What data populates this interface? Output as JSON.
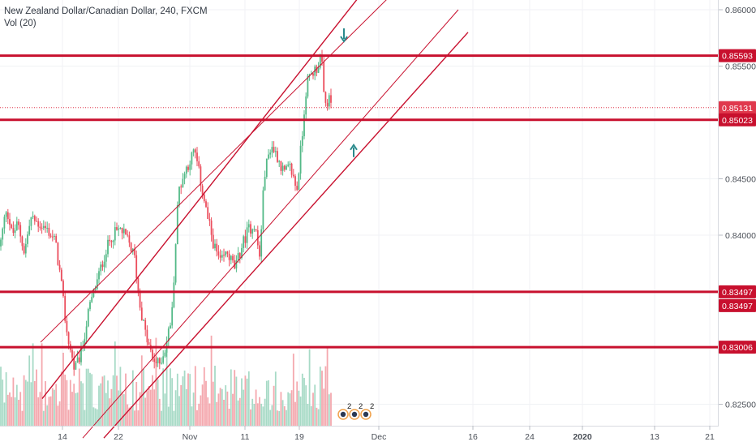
{
  "header": {
    "title": "New Zealand Dollar/Canadian Dollar, 240, FXCM",
    "volume_label": "Vol (20)"
  },
  "colors": {
    "up": "#53b987",
    "down": "#eb4d5c",
    "vol_up": "#a7dac6",
    "vol_down": "#f4a8ae",
    "level_line": "#c8102e",
    "channel_line": "#c8102e",
    "price_dotted": "#e0394d",
    "arrow": "#2a8a8c",
    "axis_bg": "#ffffff",
    "text": "#4a4f57"
  },
  "chart_data": {
    "type": "candlestick",
    "symbol": "NZDCAD",
    "interval": "240",
    "y_ticks": [
      "0.86000",
      "0.85500",
      "0.84500",
      "0.84000",
      "0.82500"
    ],
    "x_ticks": [
      "14",
      "22",
      "Nov",
      "11",
      "19",
      "Dec",
      "16",
      "24",
      "2020",
      "13",
      "21"
    ],
    "horizontal_levels": [
      0.85593,
      0.85023,
      0.83497,
      0.83006
    ],
    "price_labels": [
      {
        "text": "0.85593",
        "value": 0.85593
      },
      {
        "text": "0.85131",
        "value": 0.85131
      },
      {
        "text": "0.85023",
        "value": 0.85023
      },
      {
        "text": "0.83497",
        "value": 0.83497
      },
      {
        "text": "0.83497",
        "value": 0.83497
      },
      {
        "text": "0.83006",
        "value": 0.83006
      }
    ],
    "last_price": 0.85131,
    "close_path": [
      [
        0,
        0.839
      ],
      [
        8,
        0.8425
      ],
      [
        15,
        0.84
      ],
      [
        22,
        0.841
      ],
      [
        30,
        0.8385
      ],
      [
        38,
        0.8415
      ],
      [
        48,
        0.841
      ],
      [
        58,
        0.8405
      ],
      [
        68,
        0.8395
      ],
      [
        75,
        0.836
      ],
      [
        82,
        0.8315
      ],
      [
        92,
        0.828
      ],
      [
        100,
        0.8295
      ],
      [
        110,
        0.8335
      ],
      [
        120,
        0.836
      ],
      [
        130,
        0.8385
      ],
      [
        138,
        0.84
      ],
      [
        148,
        0.8405
      ],
      [
        158,
        0.8395
      ],
      [
        166,
        0.838
      ],
      [
        172,
        0.834
      ],
      [
        180,
        0.831
      ],
      [
        188,
        0.829
      ],
      [
        196,
        0.8285
      ],
      [
        204,
        0.83
      ],
      [
        212,
        0.833
      ],
      [
        220,
        0.844
      ],
      [
        230,
        0.846
      ],
      [
        240,
        0.8475
      ],
      [
        248,
        0.8445
      ],
      [
        256,
        0.8415
      ],
      [
        264,
        0.839
      ],
      [
        272,
        0.8375
      ],
      [
        280,
        0.8385
      ],
      [
        290,
        0.837
      ],
      [
        298,
        0.839
      ],
      [
        306,
        0.8405
      ],
      [
        314,
        0.841
      ],
      [
        320,
        0.838
      ],
      [
        326,
        0.8455
      ],
      [
        334,
        0.848
      ],
      [
        342,
        0.847
      ],
      [
        350,
        0.8455
      ],
      [
        358,
        0.846
      ],
      [
        366,
        0.844
      ],
      [
        372,
        0.8485
      ],
      [
        378,
        0.8535
      ],
      [
        386,
        0.8545
      ],
      [
        392,
        0.855
      ],
      [
        396,
        0.856
      ],
      [
        400,
        0.8515
      ],
      [
        406,
        0.852
      ],
      [
        410,
        0.8513
      ]
    ],
    "channel_lines": [
      {
        "p1": [
          52,
          0.8255
        ],
        "p2": [
          452,
          0.862
        ]
      },
      {
        "p1": [
          50,
          0.8305
        ],
        "p2": [
          492,
          0.862
        ]
      },
      {
        "p1": [
          102,
          0.822
        ],
        "p2": [
          565,
          0.86
        ]
      },
      {
        "p1": [
          128,
          0.822
        ],
        "p2": [
          577,
          0.858
        ]
      }
    ],
    "arrows": [
      {
        "direction": "down",
        "x": 424,
        "value": 0.8577
      },
      {
        "direction": "up",
        "x": 436,
        "value": 0.8475
      }
    ],
    "event_markers": [
      "2",
      "2",
      "2"
    ]
  }
}
